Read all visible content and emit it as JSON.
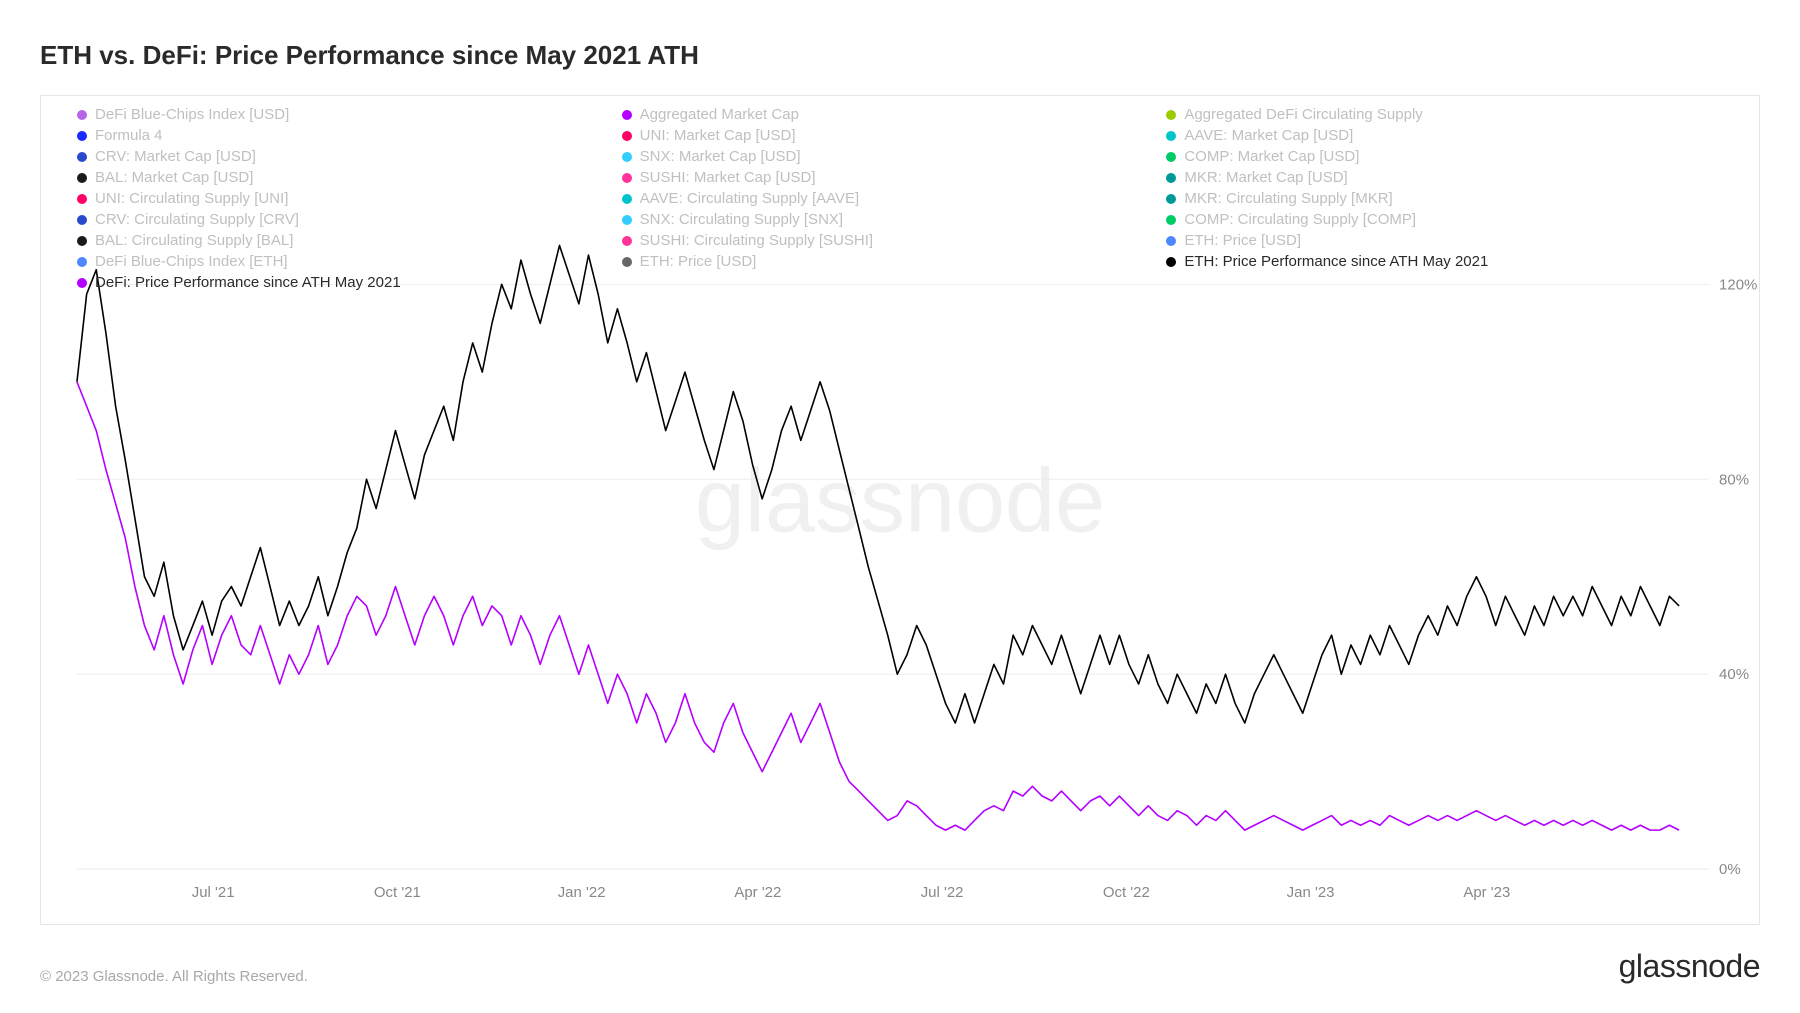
{
  "title": "ETH vs. DeFi: Price Performance since May 2021 ATH",
  "copyright": "© 2023 Glassnode. All Rights Reserved.",
  "brand": "glassnode",
  "watermark": "glassnode",
  "chart": {
    "type": "line",
    "background_color": "#ffffff",
    "border_color": "#e6e6e6",
    "grid_color": "#eeeeee",
    "ylim": [
      0,
      130
    ],
    "yticks": [
      0,
      40,
      80,
      120
    ],
    "ytick_labels": [
      "0%",
      "40%",
      "80%",
      "120%"
    ],
    "ytick_color": "#888888",
    "xtick_labels": [
      "Jul '21",
      "Oct '21",
      "Jan '22",
      "Apr '22",
      "Jul '22",
      "Oct '22",
      "Jan '23",
      "Apr '23"
    ],
    "xtick_positions_pct": [
      8.5,
      20,
      31.5,
      42.5,
      54,
      65.5,
      77,
      88
    ],
    "label_fontsize": 15,
    "title_fontsize": 26,
    "line_width": 1.6,
    "legend_inactive_color": "#c0c0c0",
    "legend_active_color": "#2a2a2a",
    "legend": [
      {
        "color": "#b565e8",
        "label": "DeFi Blue-Chips Index [USD]",
        "active": false
      },
      {
        "color": "#b300ff",
        "label": "Aggregated Market Cap",
        "active": false
      },
      {
        "color": "#9acc00",
        "label": "Aggregated DeFi Circulating Supply",
        "active": false
      },
      {
        "color": "#1a2aff",
        "label": "Formula 4",
        "active": false
      },
      {
        "color": "#ff0066",
        "label": "UNI: Market Cap [USD]",
        "active": false
      },
      {
        "color": "#00c4cc",
        "label": "AAVE: Market Cap [USD]",
        "active": false
      },
      {
        "color": "#2a4acc",
        "label": "CRV: Market Cap [USD]",
        "active": false
      },
      {
        "color": "#33ccff",
        "label": "SNX: Market Cap [USD]",
        "active": false
      },
      {
        "color": "#00cc66",
        "label": "COMP: Market Cap [USD]",
        "active": false
      },
      {
        "color": "#1a1a1a",
        "label": "BAL: Market Cap [USD]",
        "active": false
      },
      {
        "color": "#ff3399",
        "label": "SUSHI: Market Cap [USD]",
        "active": false
      },
      {
        "color": "#009999",
        "label": "MKR: Market Cap [USD]",
        "active": false
      },
      {
        "color": "#ff0066",
        "label": "UNI: Circulating Supply [UNI]",
        "active": false
      },
      {
        "color": "#00c4cc",
        "label": "AAVE: Circulating Supply [AAVE]",
        "active": false
      },
      {
        "color": "#009999",
        "label": "MKR: Circulating Supply [MKR]",
        "active": false
      },
      {
        "color": "#2a4acc",
        "label": "CRV: Circulating Supply [CRV]",
        "active": false
      },
      {
        "color": "#33ccff",
        "label": "SNX: Circulating Supply [SNX]",
        "active": false
      },
      {
        "color": "#00cc66",
        "label": "COMP: Circulating Supply [COMP]",
        "active": false
      },
      {
        "color": "#1a1a1a",
        "label": "BAL: Circulating Supply [BAL]",
        "active": false
      },
      {
        "color": "#ff3399",
        "label": "SUSHI: Circulating Supply [SUSHI]",
        "active": false
      },
      {
        "color": "#4d88ff",
        "label": "ETH: Price [USD]",
        "active": false
      },
      {
        "color": "#4d88ff",
        "label": "DeFi Blue-Chips Index [ETH]",
        "active": false
      },
      {
        "color": "#666666",
        "label": "ETH: Price [USD]",
        "active": false
      },
      {
        "color": "#000000",
        "label": "ETH: Price Performance since ATH May 2021",
        "active": true
      },
      {
        "color": "#b300ff",
        "label": "DeFi: Price Performance since ATH May 2021",
        "active": true
      }
    ],
    "series": [
      {
        "name": "ETH: Price Performance since ATH May 2021",
        "color": "#000000",
        "data": [
          100,
          118,
          123,
          110,
          95,
          84,
          72,
          60,
          56,
          63,
          52,
          45,
          50,
          55,
          48,
          55,
          58,
          54,
          60,
          66,
          58,
          50,
          55,
          50,
          54,
          60,
          52,
          58,
          65,
          70,
          80,
          74,
          82,
          90,
          83,
          76,
          85,
          90,
          95,
          88,
          100,
          108,
          102,
          112,
          120,
          115,
          125,
          118,
          112,
          120,
          128,
          122,
          116,
          126,
          118,
          108,
          115,
          108,
          100,
          106,
          98,
          90,
          96,
          102,
          95,
          88,
          82,
          90,
          98,
          92,
          83,
          76,
          82,
          90,
          95,
          88,
          94,
          100,
          94,
          86,
          78,
          70,
          62,
          55,
          48,
          40,
          44,
          50,
          46,
          40,
          34,
          30,
          36,
          30,
          36,
          42,
          38,
          48,
          44,
          50,
          46,
          42,
          48,
          42,
          36,
          42,
          48,
          42,
          48,
          42,
          38,
          44,
          38,
          34,
          40,
          36,
          32,
          38,
          34,
          40,
          34,
          30,
          36,
          40,
          44,
          40,
          36,
          32,
          38,
          44,
          48,
          40,
          46,
          42,
          48,
          44,
          50,
          46,
          42,
          48,
          52,
          48,
          54,
          50,
          56,
          60,
          56,
          50,
          56,
          52,
          48,
          54,
          50,
          56,
          52,
          56,
          52,
          58,
          54,
          50,
          56,
          52,
          58,
          54,
          50,
          56,
          54
        ]
      },
      {
        "name": "DeFi: Price Performance since ATH May 2021",
        "color": "#b300ff",
        "data": [
          100,
          95,
          90,
          82,
          75,
          68,
          58,
          50,
          45,
          52,
          44,
          38,
          45,
          50,
          42,
          48,
          52,
          46,
          44,
          50,
          44,
          38,
          44,
          40,
          44,
          50,
          42,
          46,
          52,
          56,
          54,
          48,
          52,
          58,
          52,
          46,
          52,
          56,
          52,
          46,
          52,
          56,
          50,
          54,
          52,
          46,
          52,
          48,
          42,
          48,
          52,
          46,
          40,
          46,
          40,
          34,
          40,
          36,
          30,
          36,
          32,
          26,
          30,
          36,
          30,
          26,
          24,
          30,
          34,
          28,
          24,
          20,
          24,
          28,
          32,
          26,
          30,
          34,
          28,
          22,
          18,
          16,
          14,
          12,
          10,
          11,
          14,
          13,
          11,
          9,
          8,
          9,
          8,
          10,
          12,
          13,
          12,
          16,
          15,
          17,
          15,
          14,
          16,
          14,
          12,
          14,
          15,
          13,
          15,
          13,
          11,
          13,
          11,
          10,
          12,
          11,
          9,
          11,
          10,
          12,
          10,
          8,
          9,
          10,
          11,
          10,
          9,
          8,
          9,
          10,
          11,
          9,
          10,
          9,
          10,
          9,
          11,
          10,
          9,
          10,
          11,
          10,
          11,
          10,
          11,
          12,
          11,
          10,
          11,
          10,
          9,
          10,
          9,
          10,
          9,
          10,
          9,
          10,
          9,
          8,
          9,
          8,
          9,
          8,
          8,
          9,
          8
        ]
      }
    ]
  }
}
